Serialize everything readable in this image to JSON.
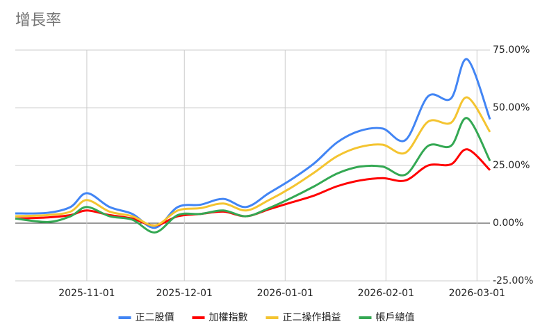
{
  "chart_data": {
    "type": "line",
    "title": "增長率",
    "x": [
      "2025-10-10",
      "2025-10-20",
      "2025-10-27",
      "2025-11-01",
      "2025-11-08",
      "2025-11-15",
      "2025-11-22",
      "2025-11-29",
      "2025-12-06",
      "2025-12-13",
      "2025-12-20",
      "2025-12-27",
      "2026-01-03",
      "2026-01-10",
      "2026-01-17",
      "2026-01-24",
      "2026-01-31",
      "2026-02-07",
      "2026-02-14",
      "2026-02-21",
      "2026-02-26",
      "2026-03-05"
    ],
    "series": [
      {
        "name": "正二股價",
        "color": "#4285f4",
        "values": [
          4.2,
          4.5,
          7,
          13,
          7,
          4,
          -2,
          7,
          8,
          10.5,
          7,
          13,
          19,
          26,
          35,
          40,
          41,
          36,
          55,
          54,
          71,
          45
        ]
      },
      {
        "name": "加權指數",
        "color": "#ff0000",
        "values": [
          2,
          2.5,
          3.5,
          5.5,
          3.5,
          2,
          -1,
          3,
          4,
          5,
          3,
          6,
          9,
          12,
          16,
          18.5,
          19.5,
          18.5,
          25,
          25.5,
          32,
          23
        ]
      },
      {
        "name": "正二操作損益",
        "color": "#f4c430",
        "values": [
          3,
          3.5,
          5,
          10,
          5,
          3,
          -1,
          5.5,
          6.5,
          8.5,
          5.5,
          10,
          15.5,
          22,
          29,
          33,
          34,
          30.5,
          44,
          43.5,
          54.5,
          39.5
        ]
      },
      {
        "name": "帳戶總值",
        "color": "#34a853",
        "values": [
          2,
          0.5,
          3,
          7,
          3,
          1.5,
          -4,
          3.5,
          4,
          5.5,
          3,
          6.5,
          11,
          16,
          21.5,
          24.5,
          24.5,
          21,
          33.5,
          33.5,
          45.5,
          27
        ]
      }
    ],
    "xlim": [
      "2025-10-10",
      "2026-03-05"
    ],
    "xticks": [
      "2025-11-01",
      "2025-12-01",
      "2026-01-01",
      "2026-02-01",
      "2026-03-01"
    ],
    "ylim": [
      -25,
      75
    ],
    "yticks": [
      {
        "value": -25,
        "label": "-25.00%"
      },
      {
        "value": 0,
        "label": "0.00%"
      },
      {
        "value": 25,
        "label": "25.00%"
      },
      {
        "value": 50,
        "label": "50.00%"
      },
      {
        "value": 75,
        "label": "75.00%"
      }
    ],
    "grid": true,
    "legend": "bottom"
  }
}
